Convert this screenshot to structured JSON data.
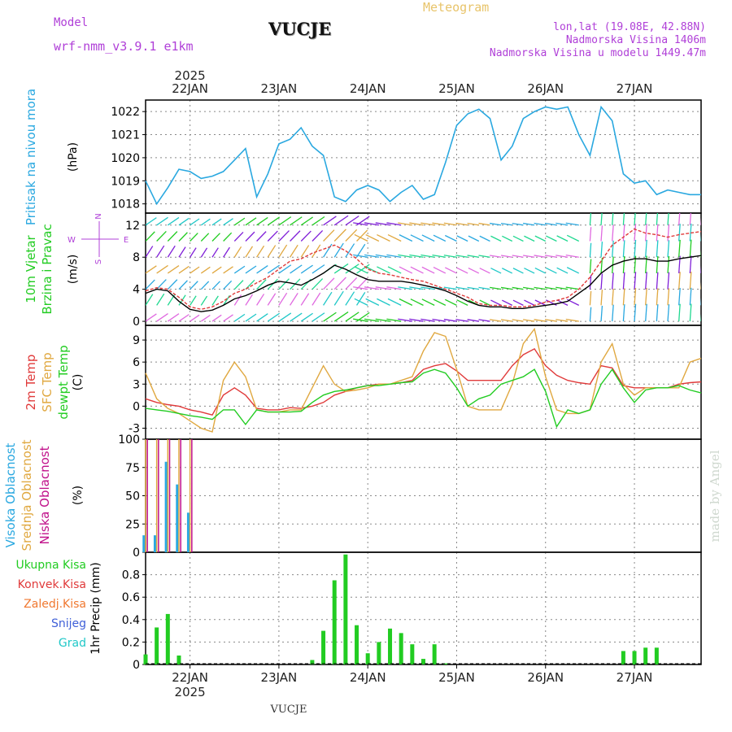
{
  "header": {
    "model_label": "Model",
    "model_name": "wrf-nmm_v3.9.1  e1km",
    "station_title": "VUCJE",
    "meteogram_label": "Meteogram",
    "coords": "lon,lat (19.08E, 42.88N)",
    "elevation": "Nadmorska Visina 1406m",
    "model_elevation": "Nadmorska Visina u modelu 1449.47m"
  },
  "footer_station": "VUCJE",
  "watermark": "made by Angel",
  "colors": {
    "pressure": "#2aa8e0",
    "temp2m": "#e03a3a",
    "sfc": "#e0a840",
    "dew": "#22cc22",
    "high_cloud": "#2aa8e0",
    "mid_cloud": "#e0a840",
    "low_cloud": "#c0108a",
    "rain": "#22cc22",
    "convective": "#e03a3a",
    "freezing": "#f07830",
    "snow": "#4060d8",
    "hail": "#20c8c8"
  },
  "chart_data": [
    {
      "type": "line",
      "panel": "pressure",
      "ylabel_side": "Pritisak na nivou mora",
      "ylabel_unit": "(hPa)",
      "ylim": [
        1017.6,
        1022.5
      ],
      "yticks": [
        1018,
        1019,
        1020,
        1021,
        1022
      ],
      "x_hours": [
        0,
        3,
        6,
        9,
        12,
        15,
        18,
        21,
        24,
        27,
        30,
        33,
        36,
        39,
        42,
        45,
        48,
        51,
        54,
        57,
        60,
        63,
        66,
        69,
        72,
        75,
        78,
        81,
        84,
        87,
        90,
        93,
        96,
        99,
        102,
        105,
        108,
        111,
        114,
        117,
        120,
        123,
        126,
        129,
        132,
        135,
        138,
        141,
        144,
        147,
        150
      ],
      "series": [
        {
          "values": [
            1019.0,
            1018.0,
            1018.7,
            1019.5,
            1019.4,
            1019.1,
            1019.2,
            1019.4,
            1019.9,
            1020.4,
            1018.3,
            1019.3,
            1020.6,
            1020.8,
            1021.3,
            1020.5,
            1020.1,
            1018.3,
            1018.1,
            1018.6,
            1018.8,
            1018.6,
            1018.1,
            1018.5,
            1018.8,
            1018.2,
            1018.4,
            1019.8,
            1021.4,
            1021.9,
            1022.1,
            1021.7,
            1019.9,
            1020.5,
            1021.7,
            1022.0,
            1022.2,
            1022.1,
            1022.2,
            1021.0,
            1020.1,
            1022.2,
            1021.6,
            1019.3,
            1018.9,
            1019.0,
            1018.4,
            1018.6,
            1018.5,
            1018.4,
            1018.4
          ]
        }
      ]
    },
    {
      "type": "line",
      "panel": "wind",
      "ylabel_side": "10m Vjetar",
      "ylabel_side2": "Brzina i Pravac",
      "ylabel_unit": "(m/s)",
      "direction_key": {
        "n": "N",
        "s": "S",
        "w": "W",
        "e": "E"
      },
      "ylim": [
        -0.5,
        13.5
      ],
      "yticks": [
        0,
        4,
        8,
        12
      ],
      "x_hours": [
        0,
        3,
        6,
        9,
        12,
        15,
        18,
        21,
        24,
        27,
        30,
        33,
        36,
        39,
        42,
        45,
        48,
        51,
        54,
        57,
        60,
        63,
        66,
        69,
        72,
        75,
        78,
        81,
        84,
        87,
        90,
        93,
        96,
        99,
        102,
        105,
        108,
        111,
        114,
        117,
        120,
        123,
        126,
        129,
        132,
        135,
        138,
        141,
        144,
        147,
        150
      ],
      "series": [
        {
          "values": [
            3.5,
            4.0,
            3.8,
            2.5,
            1.5,
            1.2,
            1.4,
            2.0,
            2.8,
            3.2,
            3.8,
            4.5,
            5.0,
            4.8,
            4.5,
            5.2,
            6.0,
            7.0,
            6.5,
            5.8,
            5.2,
            5.0,
            5.0,
            5.0,
            4.8,
            4.5,
            4.2,
            3.8,
            3.2,
            2.5,
            2.0,
            1.8,
            1.8,
            1.6,
            1.6,
            1.8,
            2.0,
            2.2,
            2.5,
            3.5,
            4.5,
            6.0,
            7.0,
            7.5,
            7.8,
            7.8,
            7.5,
            7.5,
            7.8,
            8.0,
            8.2
          ]
        },
        {
          "values": [
            3.8,
            4.2,
            4.0,
            3.0,
            1.8,
            1.5,
            1.8,
            2.5,
            3.5,
            4.0,
            4.8,
            5.5,
            6.5,
            7.5,
            7.8,
            8.5,
            9.0,
            9.5,
            8.8,
            7.8,
            6.5,
            6.0,
            5.8,
            5.5,
            5.2,
            5.0,
            4.5,
            4.0,
            3.5,
            3.0,
            2.2,
            2.0,
            2.0,
            1.8,
            1.8,
            2.0,
            2.4,
            2.6,
            3.0,
            4.0,
            5.5,
            7.5,
            9.5,
            10.5,
            11.5,
            11.0,
            10.8,
            10.5,
            10.8,
            11.0,
            11.2
          ]
        }
      ],
      "arrow_rows": [
        12,
        10,
        8,
        6,
        4,
        2,
        0
      ]
    },
    {
      "type": "line",
      "panel": "temperature",
      "ylabel_side": "2m Temp",
      "ylabel_side2": "SFC Temp",
      "ylabel_side3": "dewpt Temp",
      "ylabel_unit": "(C)",
      "ylim": [
        -4.5,
        11
      ],
      "yticks": [
        -3,
        0,
        3,
        6,
        9
      ],
      "x_hours": [
        0,
        3,
        6,
        9,
        12,
        15,
        18,
        21,
        24,
        27,
        30,
        33,
        36,
        39,
        42,
        45,
        48,
        51,
        54,
        57,
        60,
        63,
        66,
        69,
        72,
        75,
        78,
        81,
        84,
        87,
        90,
        93,
        96,
        99,
        102,
        105,
        108,
        111,
        114,
        117,
        120,
        123,
        126,
        129,
        132,
        135,
        138,
        141,
        144,
        147,
        150
      ],
      "series": [
        {
          "name": "2m Temp",
          "values": [
            1.0,
            0.5,
            0.2,
            0.0,
            -0.5,
            -0.8,
            -1.2,
            1.5,
            2.5,
            1.5,
            -0.3,
            -0.5,
            -0.5,
            -0.2,
            -0.3,
            0.0,
            0.5,
            1.5,
            2.0,
            2.5,
            2.8,
            3.0,
            3.0,
            3.2,
            3.5,
            5.0,
            5.5,
            5.8,
            4.8,
            3.5,
            3.5,
            3.5,
            3.5,
            5.5,
            7.0,
            7.8,
            5.5,
            4.2,
            3.5,
            3.2,
            3.0,
            5.5,
            5.2,
            2.8,
            2.5,
            2.5,
            2.5,
            2.5,
            3.0,
            3.2,
            3.3
          ]
        },
        {
          "name": "SFC Temp",
          "values": [
            4.5,
            1.0,
            -0.3,
            -1.0,
            -2.0,
            -3.0,
            -3.5,
            3.5,
            6.0,
            4.0,
            -0.5,
            -0.8,
            -0.8,
            -0.5,
            -0.5,
            2.5,
            5.5,
            3.0,
            2.0,
            2.2,
            2.5,
            3.0,
            3.0,
            3.5,
            4.0,
            7.5,
            10.0,
            9.5,
            5.0,
            0.0,
            -0.5,
            -0.5,
            -0.5,
            3.0,
            8.5,
            10.5,
            4.0,
            -0.5,
            -1.0,
            -1.0,
            -0.5,
            6.0,
            8.5,
            3.0,
            1.5,
            2.5,
            2.5,
            2.5,
            2.5,
            6.0,
            6.5
          ]
        },
        {
          "name": "dewpt Temp",
          "values": [
            -0.3,
            -0.5,
            -0.7,
            -1.0,
            -1.3,
            -1.5,
            -1.8,
            -0.5,
            -0.5,
            -2.5,
            -0.5,
            -0.8,
            -0.8,
            -0.8,
            -0.7,
            0.5,
            1.5,
            2.0,
            2.2,
            2.5,
            2.8,
            2.8,
            3.0,
            3.2,
            3.3,
            4.5,
            5.0,
            4.5,
            2.5,
            0.0,
            1.0,
            1.5,
            3.0,
            3.5,
            4.0,
            5.0,
            2.0,
            -2.8,
            -0.5,
            -1.0,
            -0.5,
            3.0,
            5.0,
            2.5,
            0.5,
            2.2,
            2.5,
            2.5,
            2.8,
            2.2,
            1.8
          ]
        }
      ]
    },
    {
      "type": "bar",
      "panel": "clouds",
      "ylabel_side": "Visoka Oblacnost",
      "ylabel_side2": "Srednja Oblacnost",
      "ylabel_side3": "Niska Oblacnost",
      "ylabel_unit": "(%)",
      "ylim": [
        0,
        100
      ],
      "yticks": [
        0,
        25,
        50,
        75,
        100
      ],
      "x_hours": [
        0,
        3,
        6,
        9,
        12,
        15,
        18,
        21,
        24,
        27,
        30,
        33,
        36,
        39,
        42,
        45,
        48,
        51,
        54,
        57,
        60,
        63,
        66,
        69,
        72,
        75,
        78,
        81,
        84,
        87,
        90,
        93,
        96,
        99,
        102,
        105,
        108,
        111,
        114,
        117,
        120,
        123,
        126,
        129,
        132,
        135,
        138,
        141,
        144,
        147,
        150
      ],
      "series": [
        {
          "name": "Visoka Oblacnost",
          "values": [
            15,
            15,
            80,
            60,
            35,
            0,
            0,
            0,
            0,
            0,
            0,
            0,
            0,
            0,
            0,
            0,
            0,
            0,
            0,
            0,
            0,
            0,
            0,
            0,
            0,
            0,
            0,
            0,
            0,
            0,
            0,
            0,
            0,
            0,
            0,
            0,
            0,
            0,
            0,
            0,
            0,
            0,
            0,
            0,
            0,
            0,
            0,
            0,
            0,
            0,
            0
          ]
        },
        {
          "name": "Srednja Oblacnost",
          "values": [
            100,
            100,
            100,
            100,
            100,
            0,
            0,
            0,
            0,
            0,
            0,
            0,
            0,
            0,
            0,
            0,
            0,
            0,
            0,
            0,
            0,
            0,
            0,
            0,
            0,
            0,
            0,
            0,
            0,
            0,
            0,
            0,
            0,
            0,
            0,
            0,
            0,
            0,
            0,
            0,
            0,
            0,
            0,
            0,
            0,
            0,
            0,
            0,
            0,
            0,
            0
          ]
        },
        {
          "name": "Niska Oblacnost",
          "values": [
            100,
            100,
            100,
            100,
            100,
            0,
            0,
            0,
            0,
            0,
            0,
            0,
            0,
            0,
            0,
            0,
            0,
            0,
            0,
            0,
            0,
            0,
            0,
            0,
            0,
            0,
            0,
            0,
            0,
            0,
            0,
            0,
            0,
            0,
            0,
            0,
            0,
            0,
            0,
            0,
            0,
            0,
            0,
            0,
            0,
            0,
            0,
            0,
            0,
            0,
            0
          ]
        }
      ]
    },
    {
      "type": "bar",
      "panel": "precip",
      "ylabel_side": "1hr Precip (mm)",
      "legend": [
        "Ukupna Kisa",
        "Konvek.Kisa",
        "Zaledj.Kisa",
        "Snijeg",
        "Grad"
      ],
      "ylim": [
        0,
        1.0
      ],
      "yticks": [
        0,
        0.2,
        0.4,
        0.6,
        0.8
      ],
      "x_hours": [
        0,
        3,
        6,
        9,
        12,
        15,
        18,
        21,
        24,
        27,
        30,
        33,
        36,
        39,
        42,
        45,
        48,
        51,
        54,
        57,
        60,
        63,
        66,
        69,
        72,
        75,
        78,
        81,
        84,
        87,
        90,
        93,
        96,
        99,
        102,
        105,
        108,
        111,
        114,
        117,
        120,
        123,
        126,
        129,
        132,
        135,
        138,
        141,
        144,
        147,
        150
      ],
      "series": [
        {
          "name": "Ukupna Kisa",
          "values": [
            0.09,
            0.33,
            0.45,
            0.08,
            0,
            0,
            0,
            0,
            0,
            0,
            0,
            0,
            0,
            0,
            0,
            0.04,
            0.3,
            0.75,
            0.98,
            0.35,
            0.1,
            0.2,
            0.32,
            0.28,
            0.18,
            0.05,
            0.18,
            0.01,
            0,
            0,
            0,
            0,
            0,
            0,
            0,
            0,
            0,
            0,
            0,
            0,
            0,
            0,
            0,
            0.12,
            0.12,
            0.15,
            0.15,
            0,
            0,
            0,
            0
          ]
        }
      ]
    }
  ],
  "x_axis": {
    "year": "2025",
    "top_labels": [
      "22JAN",
      "23JAN",
      "24JAN",
      "25JAN",
      "26JAN",
      "27JAN"
    ],
    "bottom_labels": [
      "22JAN",
      "23JAN",
      "24JAN",
      "25JAN",
      "26JAN",
      "27JAN"
    ],
    "day_hours": [
      12,
      36,
      60,
      84,
      108,
      132
    ],
    "xlim_hours": [
      0,
      150
    ]
  }
}
